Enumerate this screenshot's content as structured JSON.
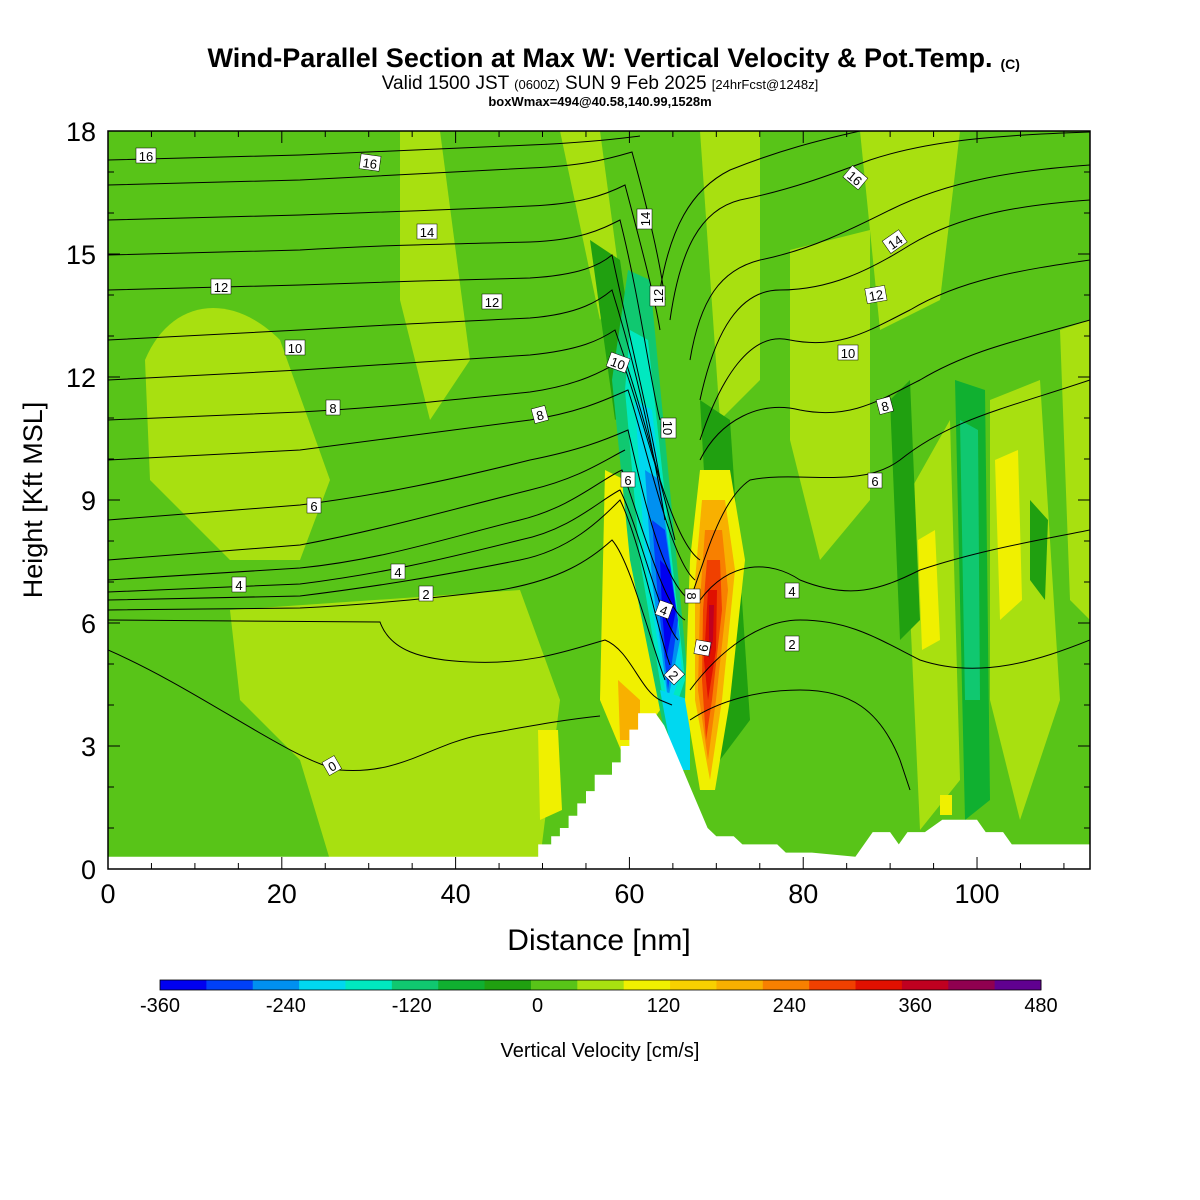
{
  "header": {
    "title": "Wind-Parallel Section at Max W: Vertical Velocity & Pot.Temp.",
    "copyright": "(C)",
    "valid_prefix": "Valid 1500 JST",
    "valid_utc": "(0600Z)",
    "valid_date": "SUN 9 Feb 2025",
    "forecast": "[24hrFcst@1248z]",
    "boxline": "boxWmax=494@40.58,140.99,1528m"
  },
  "chart_data": {
    "type": "contour",
    "xlabel": "Distance [nm]",
    "ylabel": "Height [Kft MSL]",
    "xlim": [
      0,
      113
    ],
    "ylim": [
      0,
      18
    ],
    "xticks": [
      0,
      20,
      40,
      60,
      80,
      100
    ],
    "yticks": [
      0,
      3,
      6,
      9,
      12,
      15,
      18
    ],
    "colorbar": {
      "label": "Vertical Velocity [cm/s]",
      "tick_labels": [
        "-360",
        "-240",
        "-120",
        "0",
        "120",
        "240",
        "360",
        "480"
      ],
      "tick_values": [
        -360,
        -240,
        -120,
        0,
        120,
        240,
        360,
        480
      ],
      "range": [
        -360,
        480
      ],
      "colors": [
        "#0000f0",
        "#0040f8",
        "#0090f0",
        "#00d8f0",
        "#00e8c0",
        "#10c870",
        "#10b030",
        "#20a010",
        "#58c418",
        "#a8e010",
        "#f0f000",
        "#f8d000",
        "#f8b000",
        "#f88000",
        "#f04000",
        "#e01000",
        "#c00020",
        "#900050",
        "#600090"
      ]
    },
    "theta_contour_labels": [
      "0",
      "2",
      "4",
      "6",
      "8",
      "10",
      "12",
      "14",
      "16"
    ],
    "terrain_profile_nm_kft": [
      [
        0,
        0.3
      ],
      [
        49.5,
        0.3
      ],
      [
        49.5,
        0.6
      ],
      [
        51,
        0.6
      ],
      [
        51,
        0.8
      ],
      [
        52,
        0.8
      ],
      [
        52,
        1.0
      ],
      [
        53,
        1.0
      ],
      [
        53,
        1.3
      ],
      [
        54,
        1.3
      ],
      [
        54,
        1.6
      ],
      [
        55,
        1.6
      ],
      [
        55,
        1.9
      ],
      [
        56,
        1.9
      ],
      [
        56,
        2.3
      ],
      [
        58,
        2.3
      ],
      [
        58,
        2.6
      ],
      [
        59,
        2.6
      ],
      [
        59,
        3.0
      ],
      [
        60,
        3.0
      ],
      [
        60,
        3.4
      ],
      [
        61,
        3.4
      ],
      [
        61,
        3.8
      ],
      [
        63,
        3.8
      ],
      [
        64,
        3.5
      ],
      [
        65,
        3.0
      ],
      [
        66,
        2.5
      ],
      [
        67,
        2.0
      ],
      [
        68,
        1.5
      ],
      [
        69,
        1.0
      ],
      [
        70,
        0.8
      ],
      [
        72,
        0.8
      ],
      [
        73,
        0.6
      ],
      [
        77,
        0.6
      ],
      [
        78,
        0.4
      ],
      [
        80,
        0.4
      ],
      [
        81,
        0.4
      ],
      [
        86,
        0.3
      ],
      [
        87,
        0.6
      ],
      [
        88,
        0.9
      ],
      [
        90,
        0.9
      ],
      [
        91,
        0.6
      ],
      [
        92,
        0.9
      ],
      [
        94,
        0.9
      ],
      [
        96,
        1.2
      ],
      [
        100,
        1.2
      ],
      [
        101,
        0.9
      ],
      [
        103,
        0.9
      ],
      [
        104,
        0.6
      ],
      [
        113,
        0.6
      ]
    ]
  }
}
